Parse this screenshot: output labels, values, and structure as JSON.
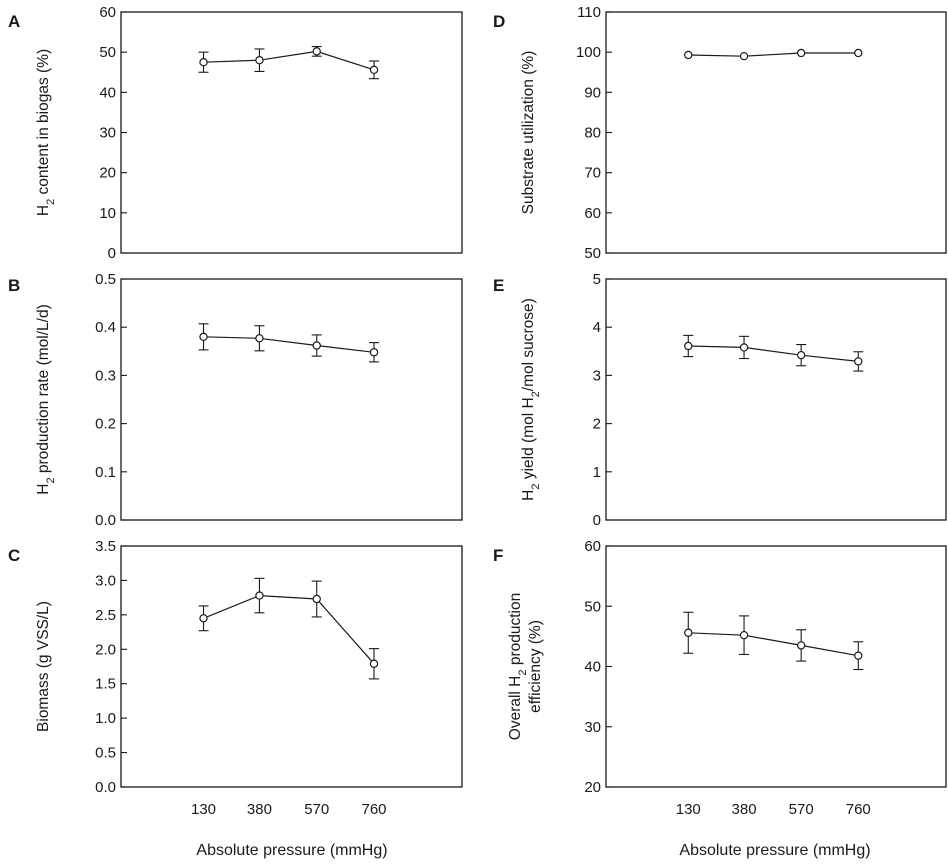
{
  "chart_data": [
    {
      "id": "A",
      "panel_letter": "A",
      "type": "line",
      "ylabel": "H₂ content in biogas (%)",
      "categories": [
        "130",
        "380",
        "570",
        "760"
      ],
      "values": [
        47.5,
        48.0,
        50.2,
        45.6
      ],
      "errors": [
        2.5,
        2.8,
        1.2,
        2.2
      ],
      "ylim": [
        0,
        60
      ],
      "yticks": [
        "0",
        "10",
        "20",
        "30",
        "40",
        "50",
        "60"
      ]
    },
    {
      "id": "B",
      "panel_letter": "B",
      "type": "line",
      "ylabel": "H₂ production rate (mol/L/d)",
      "categories": [
        "130",
        "380",
        "570",
        "760"
      ],
      "values": [
        0.38,
        0.377,
        0.362,
        0.348
      ],
      "errors": [
        0.027,
        0.026,
        0.022,
        0.02
      ],
      "ylim": [
        0,
        0.5
      ],
      "yticks": [
        "0.0",
        "0.1",
        "0.2",
        "0.3",
        "0.4",
        "0.5"
      ]
    },
    {
      "id": "C",
      "panel_letter": "C",
      "type": "line",
      "ylabel": "Biomass (g VSS/L)",
      "categories": [
        "130",
        "380",
        "570",
        "760"
      ],
      "values": [
        2.45,
        2.78,
        2.73,
        1.79
      ],
      "errors": [
        0.18,
        0.25,
        0.26,
        0.22
      ],
      "ylim": [
        0,
        3.5
      ],
      "yticks": [
        "0.0",
        "0.5",
        "1.0",
        "1.5",
        "2.0",
        "2.5",
        "3.0",
        "3.5"
      ],
      "xlabel": "Absolute pressure (mmHg)"
    },
    {
      "id": "D",
      "panel_letter": "D",
      "type": "line",
      "ylabel": "Substrate utilization (%)",
      "categories": [
        "130",
        "380",
        "570",
        "760"
      ],
      "values": [
        99.3,
        99.0,
        99.8,
        99.8
      ],
      "errors": [
        0,
        0,
        0,
        0
      ],
      "ylim": [
        50,
        110
      ],
      "yticks": [
        "50",
        "60",
        "70",
        "80",
        "90",
        "100",
        "110"
      ]
    },
    {
      "id": "E",
      "panel_letter": "E",
      "type": "line",
      "ylabel": "H₂ yield (mol H₂/mol sucrose)",
      "categories": [
        "130",
        "380",
        "570",
        "760"
      ],
      "values": [
        3.61,
        3.58,
        3.42,
        3.29
      ],
      "errors": [
        0.22,
        0.23,
        0.22,
        0.2
      ],
      "ylim": [
        0,
        5
      ],
      "yticks": [
        "0",
        "1",
        "2",
        "3",
        "4",
        "5"
      ]
    },
    {
      "id": "F",
      "panel_letter": "F",
      "type": "line",
      "ylabel_lines": [
        "Overall H₂ production",
        "efficiency (%)"
      ],
      "categories": [
        "130",
        "380",
        "570",
        "760"
      ],
      "values": [
        45.6,
        45.2,
        43.5,
        41.8
      ],
      "errors": [
        3.4,
        3.2,
        2.6,
        2.3
      ],
      "ylim": [
        20,
        60
      ],
      "yticks": [
        "20",
        "30",
        "40",
        "50",
        "60"
      ],
      "xlabel": "Absolute pressure (mmHg)"
    }
  ],
  "colors": {
    "line": "#1a1a1a",
    "marker_fill": "#ffffff",
    "frame": "#1a1a1a"
  }
}
